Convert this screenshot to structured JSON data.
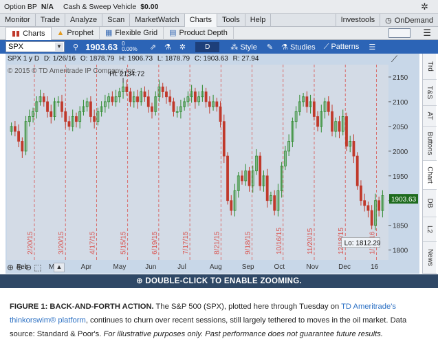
{
  "account_bar": {
    "option_bp_label": "Option BP",
    "option_bp_value": "N/A",
    "cash_label": "Cash & Sweep Vehicle",
    "cash_value": "$0.00"
  },
  "main_nav": {
    "tabs": [
      "Monitor",
      "Trade",
      "Analyze",
      "Scan",
      "MarketWatch",
      "Charts",
      "Tools",
      "Help"
    ],
    "active": "Charts",
    "right_items": [
      "Investools",
      "OnDemand"
    ]
  },
  "sub_nav": {
    "tabs": [
      "Charts",
      "Prophet",
      "Flexible Grid",
      "Product Depth"
    ],
    "active": "Charts"
  },
  "toolbar": {
    "symbol": "SPX",
    "last_price": "1903.63",
    "net_change_top": "0",
    "net_change_bottom": "0.00%",
    "aggregation": "D",
    "style_label": "Style",
    "studies_label": "Studies",
    "patterns_label": "Patterns"
  },
  "chart_info": {
    "symbol_period": "SPX 1 y D",
    "date": "D: 1/26/16",
    "open": "O: 1878.79",
    "high": "H: 1906.73",
    "low": "L: 1878.79",
    "close": "C: 1903.63",
    "range": "R: 27.94",
    "copyright": "© 2015 © TD Ameritrade IP Company, Inc."
  },
  "side_tabs": [
    "Trd",
    "T&S",
    "AT",
    "Buttons",
    "Chart",
    "DB",
    "L2",
    "News"
  ],
  "side_tab_active": "Chart",
  "zoom_hint": "⊕ DOUBLE-CLICK TO ENABLE ZOOMING.",
  "caption": {
    "label": "FIGURE 1: BACK-AND-FORTH ACTION.",
    "text1": " The S&P 500 (SPX), plotted here through Tuesday on ",
    "link": "TD Ameritrade's thinkorswim® platform",
    "text2": ", continues to churn over recent sessions, still largely tethered to moves in the oil market. Data source: Standard & Poor's. ",
    "italic": "For illustrative purposes only. Past performance does not guarantee future results."
  },
  "colors": {
    "up": "#2e8b2e",
    "down": "#c0392b",
    "toolbar": "#2c64b6",
    "plot_bg": "#d3dbe6",
    "event_line": "#d9534f",
    "price_badge": "#1e6b1e"
  },
  "chart_data": {
    "type": "candlestick",
    "title": "",
    "y_ticks": [
      1800,
      1850,
      1900,
      1950,
      2000,
      2050,
      2100,
      2150
    ],
    "ylim": [
      1780,
      2175
    ],
    "x_month_labels": [
      "Feb",
      "Mar",
      "Apr",
      "May",
      "Jun",
      "Jul",
      "Aug",
      "Sep",
      "Oct",
      "Nov",
      "Dec",
      "16"
    ],
    "event_dates": [
      "2/20/15",
      "3/20/15",
      "4/17/15",
      "5/15/15",
      "6/19/15",
      "7/17/15",
      "8/21/15",
      "9/18/15",
      "10/16/15",
      "11/20/15",
      "12/18/15",
      "1/15/16"
    ],
    "high_label": "Hi: 2134.72",
    "low_label": "Lo: 1812.29",
    "last_price_label": "1903.63",
    "closes": [
      2050,
      2040,
      2020,
      2000,
      2060,
      2070,
      2080,
      2100,
      2110,
      2100,
      2080,
      2070,
      2100,
      2100,
      2080,
      2060,
      2050,
      2070,
      2060,
      2080,
      2090,
      2100,
      2070,
      2060,
      2080,
      2090,
      2100,
      2110,
      2100,
      2110,
      2120,
      2130,
      2120,
      2100,
      2110,
      2100,
      2120,
      2110,
      2090,
      2080,
      2110,
      2130,
      2120,
      2110,
      2100,
      2080,
      2080,
      2090,
      2100,
      2110,
      2120,
      2100,
      2110,
      2120,
      2100,
      2090,
      2100,
      2090,
      2060,
      1990,
      1900,
      1880,
      1920,
      1950,
      1940,
      1960,
      1930,
      1960,
      1990,
      1930,
      1950,
      1900,
      1910,
      1880,
      1920,
      1970,
      2000,
      2020,
      2060,
      2080,
      2100,
      2110,
      2090,
      2100,
      2070,
      2050,
      2080,
      2100,
      2080,
      2040,
      2060,
      2040,
      2070,
      2010,
      2020,
      1990,
      1930,
      1900,
      1890,
      1880,
      1850,
      1900,
      1880,
      1910
    ]
  }
}
